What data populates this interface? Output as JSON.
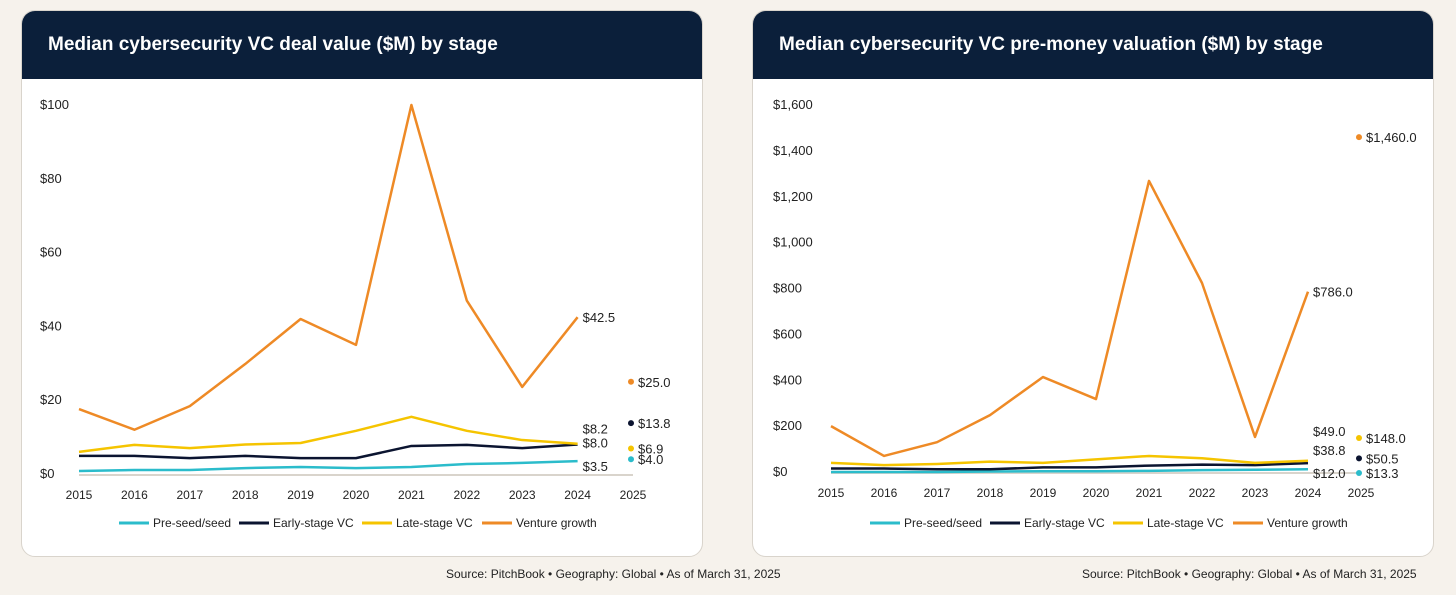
{
  "colors": {
    "Pre-seed/seed": "#2bbccb",
    "Early-stage VC": "#0b1430",
    "Late-stage VC": "#f5c400",
    "Venture growth": "#ee8a26"
  },
  "chart_data": [
    {
      "type": "line",
      "title": "Median cybersecurity VC deal value ($M) by stage",
      "x": [
        2015,
        2016,
        2017,
        2018,
        2019,
        2020,
        2021,
        2022,
        2023,
        2024
      ],
      "x_ticks": [
        "2015",
        "2016",
        "2017",
        "2018",
        "2019",
        "2020",
        "2021",
        "2022",
        "2023",
        "2024",
        "2025"
      ],
      "y_ticks": [
        "$0",
        "$20",
        "$40",
        "$60",
        "$80",
        "$100"
      ],
      "ylim": [
        0,
        100
      ],
      "legend": "bottom",
      "series": [
        {
          "name": "Pre-seed/seed",
          "values": [
            0.8,
            1.1,
            1.1,
            1.6,
            1.9,
            1.6,
            1.9,
            2.7,
            3.0,
            3.5
          ],
          "end_label": "$3.5",
          "point_2025": 4.0,
          "label_2025": "$4.0"
        },
        {
          "name": "Early-stage VC",
          "values": [
            4.9,
            4.9,
            4.3,
            4.9,
            4.3,
            4.3,
            7.6,
            7.9,
            7.0,
            8.0
          ],
          "end_label": "$8.0",
          "point_2025": 13.8,
          "label_2025": "$13.8"
        },
        {
          "name": "Late-stage VC",
          "values": [
            6.0,
            7.9,
            7.0,
            8.0,
            8.4,
            11.7,
            15.5,
            11.7,
            9.2,
            8.2
          ],
          "end_label": "$8.2",
          "point_2025": 6.9,
          "label_2025": "$6.9"
        },
        {
          "name": "Venture growth",
          "values": [
            17.6,
            12.0,
            18.4,
            29.8,
            42.0,
            35.0,
            100.0,
            47.0,
            23.6,
            42.5
          ],
          "end_label": "$42.5",
          "point_2025": 25.0,
          "label_2025": "$25.0"
        }
      ],
      "source": "Source: PitchBook  •  Geography: Global  •  As of March 31, 2025"
    },
    {
      "type": "line",
      "title": "Median cybersecurity VC pre-money valuation ($M) by stage",
      "x": [
        2015,
        2016,
        2017,
        2018,
        2019,
        2020,
        2021,
        2022,
        2023,
        2024
      ],
      "x_ticks": [
        "2015",
        "2016",
        "2017",
        "2018",
        "2019",
        "2020",
        "2021",
        "2022",
        "2023",
        "2024",
        "2025"
      ],
      "y_ticks": [
        "$0",
        "$200",
        "$400",
        "$600",
        "$800",
        "$1,000",
        "$1,200",
        "$1,400",
        "$1,600"
      ],
      "ylim": [
        0,
        1600
      ],
      "legend": "bottom",
      "series": [
        {
          "name": "Pre-seed/seed",
          "values": [
            0,
            0,
            0,
            2,
            3,
            3,
            5,
            8,
            10,
            12
          ],
          "end_label": "$12.0",
          "point_2025": 13.3,
          "label_2025": "$13.3"
        },
        {
          "name": "Early-stage VC",
          "values": [
            15,
            15,
            12,
            12,
            20,
            20,
            28,
            32,
            30,
            38.8
          ],
          "end_label": "$38.8",
          "point_2025": 50.5,
          "label_2025": "$50.5"
        },
        {
          "name": "Late-stage VC",
          "values": [
            40,
            30,
            35,
            45,
            40,
            55,
            70,
            60,
            40,
            49
          ],
          "end_label": "$49.0",
          "point_2025": 148,
          "label_2025": "$148.0"
        },
        {
          "name": "Venture growth",
          "values": [
            200,
            70,
            130,
            248,
            414,
            318,
            1269,
            824,
            153,
            786
          ],
          "end_label": "$786.0",
          "point_2025": 1460,
          "label_2025": "$1,460.0"
        }
      ],
      "source": "Source: PitchBook  •  Geography: Global  •  As of March 31, 2025"
    }
  ]
}
